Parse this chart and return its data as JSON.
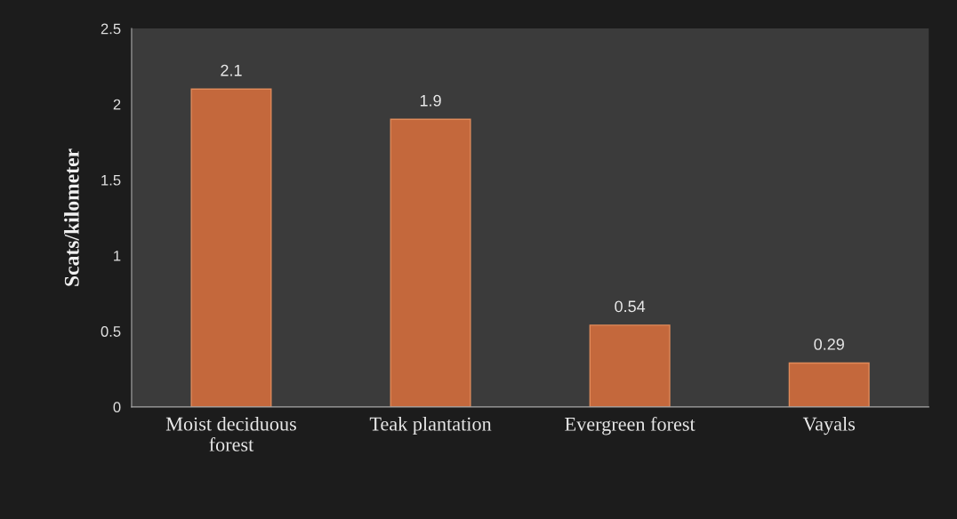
{
  "chart_data": {
    "type": "bar",
    "categories": [
      "Moist deciduous\nforest",
      "Teak plantation",
      "Evergreen forest",
      "Vayals"
    ],
    "values": [
      2.1,
      1.9,
      0.54,
      0.29
    ],
    "color": "#c4683c",
    "ylabel": "Scats/kilometer",
    "ylim": [
      0,
      2.5
    ],
    "yticks": [
      0,
      0.5,
      1,
      1.5,
      2,
      2.5
    ],
    "data_labels": true,
    "grid": false,
    "legend": false
  }
}
